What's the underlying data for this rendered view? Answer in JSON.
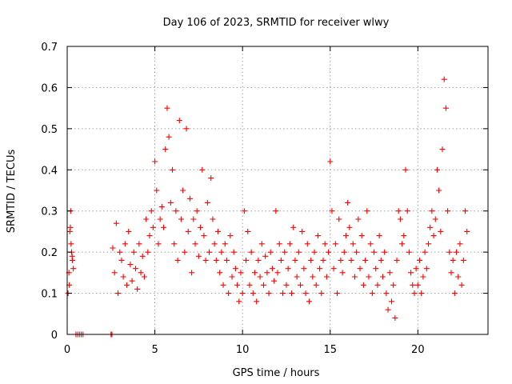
{
  "chart_data": {
    "type": "scatter",
    "title": "Day 106 of 2023, SRMTID for receiver wlwy",
    "xlabel": "GPS time / hours",
    "ylabel": "SRMTID / TECUs",
    "xlim": [
      0,
      24
    ],
    "ylim": [
      0,
      0.7
    ],
    "xticks": [
      0,
      5,
      10,
      15,
      20
    ],
    "yticks": [
      0,
      0.1,
      0.2,
      0.3,
      0.4,
      0.5,
      0.6,
      0.7
    ],
    "grid": true,
    "marker": "plus",
    "colors": {
      "series": "#ff0000",
      "grid": "#a0a0a0",
      "axis": "#000000"
    },
    "series": [
      {
        "name": "SRMTID",
        "x": [
          0.05,
          0.1,
          0.15,
          0.2,
          0.25,
          0.3,
          0.35,
          0.12,
          0.18,
          0.22,
          0.28,
          0.5,
          0.6,
          0.7,
          0.8,
          0.9,
          2.5,
          2.55,
          2.6,
          2.7,
          2.8,
          2.9,
          3.0,
          3.1,
          3.2,
          3.3,
          3.4,
          3.5,
          3.6,
          3.7,
          3.8,
          3.9,
          4.0,
          4.1,
          4.2,
          4.3,
          4.4,
          4.5,
          4.6,
          4.7,
          4.8,
          4.9,
          5.0,
          5.1,
          5.2,
          5.3,
          5.4,
          5.5,
          5.6,
          5.7,
          5.8,
          5.9,
          6.0,
          6.1,
          6.2,
          6.3,
          6.4,
          6.5,
          6.6,
          6.7,
          6.8,
          6.9,
          7.0,
          7.1,
          7.2,
          7.3,
          7.4,
          7.5,
          7.6,
          7.7,
          7.8,
          7.9,
          8.0,
          8.1,
          8.2,
          8.3,
          8.4,
          8.5,
          8.6,
          8.7,
          8.8,
          8.9,
          9.0,
          9.1,
          9.2,
          9.3,
          9.4,
          9.5,
          9.6,
          9.7,
          9.8,
          9.9,
          10.0,
          10.1,
          10.2,
          10.3,
          10.4,
          10.5,
          10.6,
          10.7,
          10.8,
          10.9,
          11.0,
          11.1,
          11.2,
          11.3,
          11.4,
          11.5,
          11.6,
          11.7,
          11.8,
          11.9,
          12.0,
          12.1,
          12.2,
          12.3,
          12.4,
          12.5,
          12.6,
          12.7,
          12.8,
          12.9,
          13.0,
          13.1,
          13.2,
          13.3,
          13.4,
          13.5,
          13.6,
          13.7,
          13.8,
          13.9,
          14.0,
          14.1,
          14.2,
          14.3,
          14.4,
          14.5,
          14.6,
          14.7,
          14.8,
          14.9,
          15.0,
          15.1,
          15.2,
          15.3,
          15.4,
          15.5,
          15.6,
          15.7,
          15.8,
          15.9,
          16.0,
          16.1,
          16.2,
          16.3,
          16.4,
          16.5,
          16.6,
          16.7,
          16.8,
          16.9,
          17.0,
          17.1,
          17.2,
          17.3,
          17.4,
          17.5,
          17.6,
          17.7,
          17.8,
          17.9,
          18.0,
          18.1,
          18.2,
          18.3,
          18.4,
          18.5,
          18.6,
          18.7,
          18.8,
          18.9,
          19.0,
          19.1,
          19.2,
          19.3,
          19.4,
          19.5,
          19.6,
          19.7,
          19.8,
          19.9,
          20.0,
          20.1,
          20.2,
          20.3,
          20.4,
          20.5,
          20.6,
          20.7,
          20.8,
          20.9,
          21.0,
          21.1,
          21.2,
          21.3,
          21.4,
          21.5,
          21.6,
          21.7,
          21.8,
          21.9,
          22.0,
          22.1,
          22.2,
          22.3,
          22.4,
          22.5,
          22.6,
          22.7,
          22.8
        ],
        "y": [
          0.1,
          0.15,
          0.25,
          0.3,
          0.2,
          0.18,
          0.16,
          0.12,
          0.26,
          0.22,
          0.19,
          0.0,
          0.0,
          0.0,
          0.0,
          0.0,
          0.0,
          0.0,
          0.21,
          0.15,
          0.27,
          0.1,
          0.2,
          0.18,
          0.14,
          0.22,
          0.12,
          0.25,
          0.17,
          0.13,
          0.2,
          0.16,
          0.11,
          0.22,
          0.15,
          0.19,
          0.14,
          0.28,
          0.2,
          0.24,
          0.3,
          0.26,
          0.42,
          0.35,
          0.22,
          0.28,
          0.31,
          0.26,
          0.45,
          0.55,
          0.48,
          0.32,
          0.4,
          0.22,
          0.3,
          0.18,
          0.52,
          0.28,
          0.35,
          0.2,
          0.5,
          0.25,
          0.33,
          0.15,
          0.28,
          0.22,
          0.3,
          0.19,
          0.26,
          0.4,
          0.24,
          0.18,
          0.32,
          0.2,
          0.38,
          0.28,
          0.22,
          0.18,
          0.25,
          0.15,
          0.2,
          0.12,
          0.22,
          0.18,
          0.1,
          0.24,
          0.14,
          0.2,
          0.16,
          0.12,
          0.08,
          0.15,
          0.1,
          0.3,
          0.18,
          0.25,
          0.12,
          0.2,
          0.1,
          0.15,
          0.08,
          0.18,
          0.14,
          0.22,
          0.12,
          0.19,
          0.15,
          0.1,
          0.2,
          0.16,
          0.13,
          0.3,
          0.15,
          0.22,
          0.18,
          0.1,
          0.2,
          0.12,
          0.16,
          0.22,
          0.1,
          0.26,
          0.18,
          0.14,
          0.2,
          0.12,
          0.25,
          0.16,
          0.1,
          0.22,
          0.08,
          0.18,
          0.14,
          0.2,
          0.12,
          0.24,
          0.16,
          0.1,
          0.18,
          0.22,
          0.14,
          0.2,
          0.42,
          0.3,
          0.16,
          0.22,
          0.1,
          0.28,
          0.18,
          0.15,
          0.2,
          0.24,
          0.32,
          0.26,
          0.18,
          0.22,
          0.14,
          0.2,
          0.28,
          0.16,
          0.24,
          0.12,
          0.18,
          0.3,
          0.14,
          0.22,
          0.1,
          0.2,
          0.16,
          0.12,
          0.24,
          0.18,
          0.14,
          0.2,
          0.1,
          0.06,
          0.15,
          0.08,
          0.12,
          0.04,
          0.18,
          0.3,
          0.28,
          0.22,
          0.24,
          0.4,
          0.3,
          0.2,
          0.15,
          0.12,
          0.1,
          0.16,
          0.12,
          0.18,
          0.1,
          0.14,
          0.2,
          0.16,
          0.22,
          0.26,
          0.3,
          0.24,
          0.28,
          0.4,
          0.35,
          0.25,
          0.45,
          0.62,
          0.55,
          0.3,
          0.2,
          0.15,
          0.18,
          0.1,
          0.2,
          0.14,
          0.22,
          0.12,
          0.18,
          0.3,
          0.25
        ]
      }
    ]
  }
}
